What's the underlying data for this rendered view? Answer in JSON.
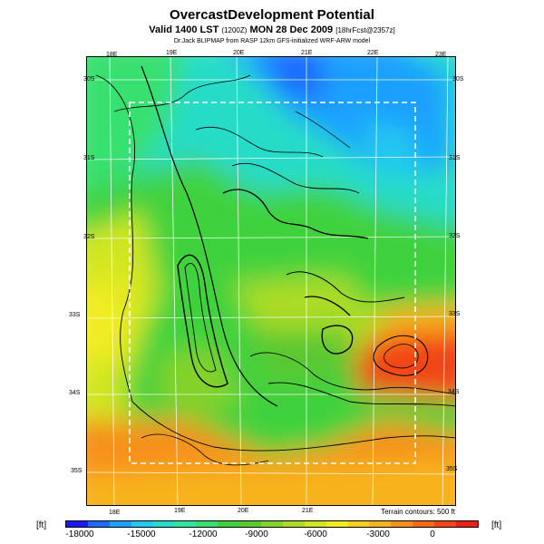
{
  "header": {
    "title": "OvercastDevelopment Potential",
    "subtitle_main": "Valid 1400 LST",
    "subtitle_small": "(1200Z)",
    "subtitle_date": "MON 28 Dec 2009",
    "subtitle_fcst": "[18hrFcst@2357z]",
    "subtitle2": "Dr.Jack BLIPMAP from RASP 12km GFS-initialized WRF-ARW model"
  },
  "map": {
    "lon_ticks_top": [
      "18E",
      "19E",
      "20E",
      "21E",
      "22E",
      "23E"
    ],
    "lon_ticks_bottom": [
      "18E",
      "19E",
      "20E",
      "21E"
    ],
    "lat_ticks_left": [
      "30S",
      "31S",
      "32S",
      "33S",
      "34S",
      "35S"
    ],
    "lat_ticks_right": [
      "30S",
      "31S",
      "32S",
      "33S",
      "34S",
      "35S"
    ],
    "contour_note": "Terrain contours: 500 ft"
  },
  "colorbar": {
    "unit_left": "[ft]",
    "unit_right": "[ft]",
    "labels": [
      "-18000",
      "-15000",
      "-12000",
      "-9000",
      "-6000",
      "-3000",
      "0"
    ],
    "colors": [
      "#1a1aff",
      "#1e6bff",
      "#1fa0ff",
      "#22c8f0",
      "#27dcc8",
      "#2ee6a0",
      "#37e070",
      "#3fd23c",
      "#5ac830",
      "#84d22c",
      "#acdc28",
      "#d2e624",
      "#f0ec20",
      "#f6d21e",
      "#f8b21c",
      "#f6901a",
      "#f46a18",
      "#f24418",
      "#e82018"
    ]
  }
}
